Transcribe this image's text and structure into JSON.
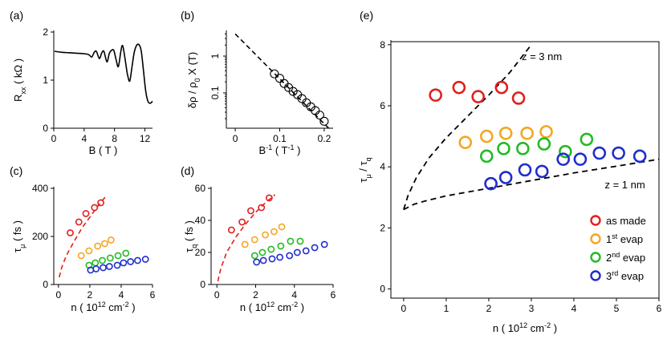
{
  "figure": {
    "width": 831,
    "height": 428
  },
  "chart_data": [
    {
      "id": "a",
      "type": "line",
      "panel_label": "(a)",
      "xlabel": "B ( T )",
      "ylabel": "R_xx ( kΩ )",
      "xlim": [
        0,
        13
      ],
      "ylim": [
        0,
        2
      ],
      "xticks": [
        0,
        4,
        8,
        12
      ],
      "yticks": [
        0,
        1,
        2
      ],
      "series": [
        {
          "name": "Rxx",
          "color": "#000000",
          "x": [
            0.1,
            1,
            2,
            3,
            4,
            4.6,
            5.0,
            5.3,
            5.6,
            6.0,
            6.3,
            6.6,
            7.0,
            7.3,
            7.6,
            7.9,
            8.2,
            8.5,
            8.8,
            9.0,
            9.2,
            9.5,
            9.7,
            10.0,
            10.3,
            10.6,
            10.9,
            11.2,
            11.5,
            11.8,
            12.1,
            12.4,
            12.7,
            13.0
          ],
          "y": [
            1.6,
            1.58,
            1.57,
            1.56,
            1.55,
            1.53,
            1.48,
            1.57,
            1.6,
            1.45,
            1.56,
            1.6,
            1.38,
            1.55,
            1.62,
            1.62,
            1.43,
            1.28,
            1.57,
            1.72,
            1.63,
            1.32,
            1.12,
            0.98,
            1.28,
            1.58,
            1.72,
            1.74,
            1.62,
            1.22,
            0.78,
            0.56,
            0.52,
            0.56
          ]
        }
      ]
    },
    {
      "id": "b",
      "type": "scatter",
      "panel_label": "(b)",
      "xlabel": "B^-1 ( T^-1 )",
      "ylabel": "δρ / ρ0 X (T)",
      "xscale": "linear",
      "yscale": "log",
      "xlim": [
        -0.02,
        0.22
      ],
      "ylim": [
        0.011,
        4.5
      ],
      "xticks": [
        0,
        0.1,
        0.2
      ],
      "yticks": [
        0.1,
        1
      ],
      "fit_line": {
        "x": [
          0,
          0.21
        ],
        "y": [
          4.0,
          0.011
        ],
        "style": "dashed"
      },
      "series": [
        {
          "name": "data",
          "color": "#000000",
          "x": [
            0.088,
            0.1,
            0.11,
            0.12,
            0.13,
            0.14,
            0.15,
            0.16,
            0.17,
            0.18,
            0.19,
            0.2
          ],
          "y": [
            0.33,
            0.25,
            0.18,
            0.14,
            0.11,
            0.09,
            0.07,
            0.054,
            0.042,
            0.033,
            0.025,
            0.017
          ]
        }
      ]
    },
    {
      "id": "c",
      "type": "scatter",
      "panel_label": "(c)",
      "xlabel": "n ( 10^12 cm^-2 )",
      "ylabel": "τμ ( fs )",
      "xlim": [
        -0.3,
        6
      ],
      "ylim": [
        0,
        400
      ],
      "xticks": [
        0,
        2,
        4,
        6
      ],
      "yticks": [
        0,
        200,
        400
      ],
      "fit_curve": {
        "color": "#e02020",
        "x": [
          0.05,
          0.2,
          0.5,
          1,
          1.5,
          2,
          2.5,
          3
        ],
        "y": [
          30,
          70,
          120,
          180,
          235,
          280,
          325,
          365
        ]
      },
      "series": [
        {
          "name": "as made",
          "color": "#e02020",
          "x": [
            0.75,
            1.3,
            1.75,
            2.3,
            2.7
          ],
          "y": [
            215,
            260,
            295,
            320,
            340
          ]
        },
        {
          "name": "1st evap",
          "color": "#f5a623",
          "x": [
            1.45,
            1.95,
            2.5,
            2.95,
            3.35
          ],
          "y": [
            120,
            140,
            160,
            170,
            185
          ]
        },
        {
          "name": "2nd evap",
          "color": "#22bb22",
          "x": [
            1.95,
            2.35,
            2.8,
            3.3,
            3.8,
            4.3
          ],
          "y": [
            80,
            90,
            100,
            110,
            120,
            130
          ]
        },
        {
          "name": "3rd evap",
          "color": "#1f2ecc",
          "x": [
            2.05,
            2.4,
            2.85,
            3.25,
            3.75,
            4.15,
            4.6,
            5.05,
            5.55
          ],
          "y": [
            60,
            65,
            70,
            75,
            80,
            90,
            95,
            100,
            105
          ]
        }
      ]
    },
    {
      "id": "d",
      "type": "scatter",
      "panel_label": "(d)",
      "xlabel": "n ( 10^12 cm^-2 )",
      "ylabel": "τq ( fs )",
      "xlim": [
        -0.3,
        6
      ],
      "ylim": [
        0,
        60
      ],
      "xticks": [
        0,
        2,
        4,
        6
      ],
      "yticks": [
        0,
        20,
        40,
        60
      ],
      "fit_curve": {
        "color": "#e02020",
        "x": [
          0.05,
          0.2,
          0.5,
          1,
          1.5,
          2,
          2.5,
          3
        ],
        "y": [
          2,
          10,
          20,
          30,
          38,
          45,
          51,
          56
        ]
      },
      "series": [
        {
          "name": "as made",
          "color": "#e02020",
          "x": [
            0.75,
            1.3,
            1.75,
            2.3,
            2.7
          ],
          "y": [
            34,
            39,
            46,
            48,
            54
          ]
        },
        {
          "name": "1st evap",
          "color": "#f5a623",
          "x": [
            1.45,
            1.95,
            2.5,
            2.95,
            3.35
          ],
          "y": [
            25,
            28,
            31,
            33,
            36
          ]
        },
        {
          "name": "2nd evap",
          "color": "#22bb22",
          "x": [
            1.95,
            2.35,
            2.8,
            3.3,
            3.8,
            4.3
          ],
          "y": [
            18,
            20,
            22,
            24,
            27,
            27
          ]
        },
        {
          "name": "3rd evap",
          "color": "#1f2ecc",
          "x": [
            2.05,
            2.4,
            2.85,
            3.25,
            3.75,
            4.15,
            4.6,
            5.05,
            5.55
          ],
          "y": [
            14,
            15,
            16,
            17,
            18,
            20,
            21,
            23,
            25
          ]
        }
      ]
    },
    {
      "id": "e",
      "type": "scatter",
      "panel_label": "(e)",
      "xlabel": "n ( 10^12 cm^-2 )",
      "ylabel": "τμ / τq",
      "xlim": [
        -0.3,
        6
      ],
      "ylim": [
        -0.3,
        8.1
      ],
      "xticks": [
        0,
        1,
        2,
        3,
        4,
        5,
        6
      ],
      "yticks": [
        0,
        2,
        4,
        6,
        8
      ],
      "model_curves": [
        {
          "label": "z = 3 nm",
          "x": [
            0,
            0.1,
            0.3,
            0.6,
            1,
            1.5,
            2,
            2.5,
            3
          ],
          "y": [
            2.6,
            3.05,
            3.65,
            4.3,
            4.95,
            5.65,
            6.35,
            7.1,
            8.0
          ]
        },
        {
          "label": "z = 1 nm",
          "x": [
            0,
            0.25,
            0.5,
            1,
            2,
            3,
            4,
            5,
            6
          ],
          "y": [
            2.6,
            2.78,
            2.88,
            3.05,
            3.3,
            3.55,
            3.8,
            4.02,
            4.25
          ]
        }
      ],
      "series": [
        {
          "name": "as made",
          "color": "#e02020",
          "x": [
            0.75,
            1.3,
            1.75,
            2.3,
            2.7
          ],
          "y": [
            6.35,
            6.6,
            6.3,
            6.6,
            6.25
          ]
        },
        {
          "name": "1st evap",
          "color": "#f5a623",
          "x": [
            1.45,
            1.95,
            2.4,
            2.9,
            3.35
          ],
          "y": [
            4.8,
            5.0,
            5.1,
            5.1,
            5.15
          ]
        },
        {
          "name": "2nd evap",
          "color": "#22bb22",
          "x": [
            1.95,
            2.35,
            2.8,
            3.3,
            3.8,
            4.3
          ],
          "y": [
            4.35,
            4.6,
            4.6,
            4.75,
            4.5,
            4.9
          ]
        },
        {
          "name": "3rd evap",
          "color": "#1f2ecc",
          "x": [
            2.05,
            2.4,
            2.85,
            3.25,
            3.75,
            4.15,
            4.6,
            5.05,
            5.55
          ],
          "y": [
            3.45,
            3.65,
            3.9,
            3.85,
            4.25,
            4.25,
            4.45,
            4.45,
            4.35
          ]
        }
      ],
      "legend": {
        "position": "bottom-right",
        "entries": [
          {
            "text": "as made",
            "color": "#e02020"
          },
          {
            "text": "1st evap",
            "color": "#f5a623"
          },
          {
            "text": "2nd evap",
            "color": "#22bb22"
          },
          {
            "text": "3rd evap",
            "color": "#1f2ecc"
          }
        ]
      }
    }
  ]
}
